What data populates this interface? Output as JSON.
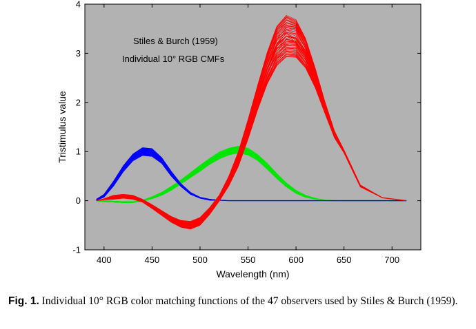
{
  "chart_data": {
    "type": "line",
    "title": "",
    "annotations": [
      "Stiles & Burch (1959)",
      "Individual 10° RGB CMFs"
    ],
    "xlabel": "Wavelength (nm)",
    "ylabel": "Tristimulus value",
    "xlim": [
      380,
      730
    ],
    "ylim": [
      -1,
      4
    ],
    "xticks": [
      400,
      450,
      500,
      550,
      600,
      650,
      700
    ],
    "yticks": [
      -1,
      0,
      1,
      2,
      3,
      4
    ],
    "grid": false,
    "background": "#b2b2b2",
    "observers": 47,
    "x": [
      392,
      400,
      410,
      420,
      430,
      440,
      450,
      460,
      470,
      480,
      490,
      500,
      510,
      520,
      530,
      540,
      550,
      560,
      570,
      580,
      590,
      600,
      610,
      620,
      630,
      640,
      650,
      667,
      690,
      715
    ],
    "series": [
      {
        "name": "r̄ (red)",
        "color": "#ff0000",
        "values": [
          0.0,
          0.03,
          0.07,
          0.09,
          0.07,
          0.0,
          -0.12,
          -0.25,
          -0.38,
          -0.47,
          -0.5,
          -0.42,
          -0.21,
          0.05,
          0.4,
          0.85,
          1.45,
          2.1,
          2.7,
          3.15,
          3.35,
          3.3,
          3.0,
          2.5,
          1.9,
          1.35,
          1.0,
          0.3,
          0.06,
          0.0
        ],
        "spread": [
          0.0,
          0.01,
          0.04,
          0.04,
          0.04,
          0.03,
          0.04,
          0.05,
          0.06,
          0.07,
          0.08,
          0.08,
          0.07,
          0.06,
          0.1,
          0.15,
          0.2,
          0.25,
          0.32,
          0.4,
          0.42,
          0.38,
          0.3,
          0.2,
          0.12,
          0.07,
          0.03,
          0.02,
          0.0,
          0.0
        ]
      },
      {
        "name": "ḡ (green)",
        "color": "#00e600",
        "values": [
          0.0,
          -0.01,
          -0.02,
          -0.03,
          -0.03,
          0.0,
          0.06,
          0.14,
          0.25,
          0.38,
          0.52,
          0.66,
          0.8,
          0.92,
          1.0,
          1.04,
          1.0,
          0.88,
          0.7,
          0.5,
          0.32,
          0.18,
          0.09,
          0.04,
          0.01,
          0.0,
          0.0,
          0.0,
          0.0,
          0.0
        ],
        "spread": [
          0.0,
          0.01,
          0.01,
          0.01,
          0.01,
          0.01,
          0.02,
          0.03,
          0.04,
          0.04,
          0.05,
          0.06,
          0.06,
          0.07,
          0.07,
          0.07,
          0.07,
          0.06,
          0.06,
          0.05,
          0.04,
          0.03,
          0.02,
          0.01,
          0.0,
          0.0,
          0.0,
          0.0,
          0.0,
          0.0
        ]
      },
      {
        "name": "b̄ (blue)",
        "color": "#0000ff",
        "values": [
          0.02,
          0.1,
          0.35,
          0.65,
          0.88,
          1.0,
          0.98,
          0.82,
          0.55,
          0.32,
          0.15,
          0.06,
          0.02,
          0.01,
          0.0,
          0.0,
          0.0,
          0.0,
          0.0,
          0.0,
          0.0,
          0.0,
          0.0,
          0.0,
          0.0,
          0.0,
          0.0,
          0.0,
          0.0,
          0.0
        ],
        "spread": [
          0.01,
          0.03,
          0.05,
          0.06,
          0.07,
          0.08,
          0.08,
          0.06,
          0.05,
          0.03,
          0.02,
          0.01,
          0.01,
          0.0,
          0.0,
          0.0,
          0.0,
          0.0,
          0.0,
          0.0,
          0.0,
          0.0,
          0.0,
          0.0,
          0.0,
          0.0,
          0.0,
          0.0,
          0.0,
          0.0
        ]
      }
    ]
  },
  "caption": {
    "label": "Fig. 1.",
    "text": "Individual 10° RGB color matching functions of the 47 observers used by Stiles & Burch (1959)."
  }
}
